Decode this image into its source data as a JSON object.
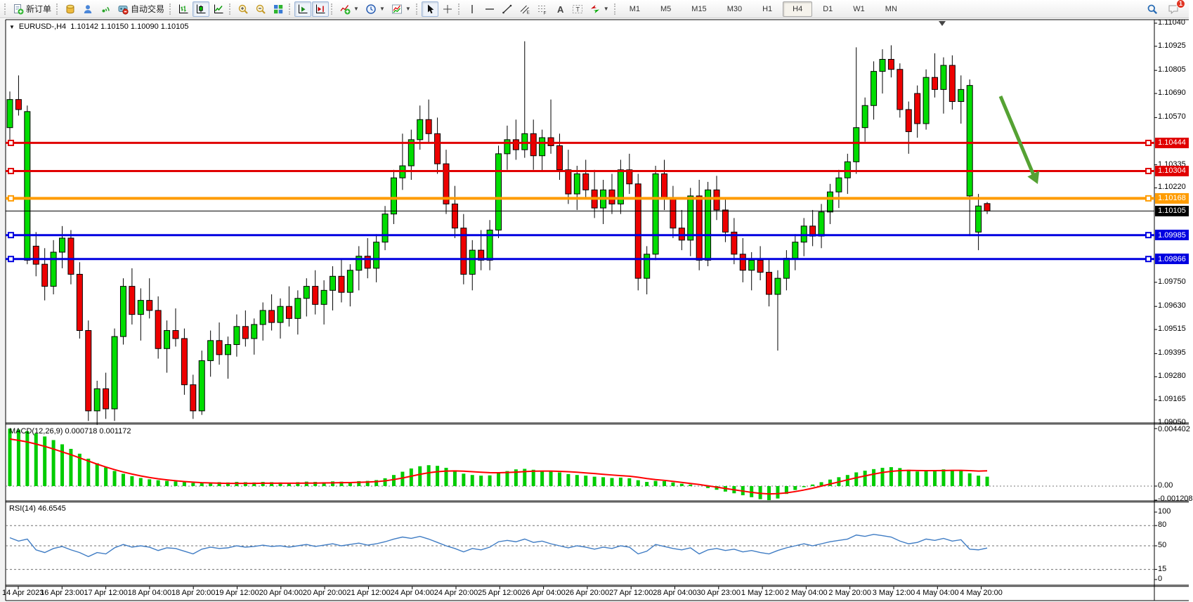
{
  "colors": {
    "bull_candle": "#00dd00",
    "bear_candle": "#ee0000",
    "candle_border": "#000000",
    "resistance_line_red": "#e00000",
    "pivot_line_orange": "#ff9c00",
    "support_line_blue": "#0000e0",
    "current_price_line_black": "#000000",
    "macd_histogram": "#00cc00",
    "macd_signal": "#ff0000",
    "rsi_line": "#3f7cc4",
    "annotation_arrow": "#55a233"
  },
  "toolbar": {
    "groups": [
      [
        {
          "name": "new-order",
          "icon": "new-order-icon",
          "label": "新订单"
        }
      ],
      [
        {
          "name": "chart-profile",
          "icon": "profile-icon"
        },
        {
          "name": "mql-community",
          "icon": "community-icon"
        },
        {
          "name": "signals",
          "icon": "signals-icon"
        },
        {
          "name": "auto-trading",
          "icon": "auto-trading-icon",
          "label": "自动交易"
        }
      ],
      [
        {
          "name": "bars-chart",
          "icon": "bars-icon"
        },
        {
          "name": "candlestick-chart",
          "icon": "candles-icon",
          "active": true
        },
        {
          "name": "line-chart",
          "icon": "line-icon"
        }
      ],
      [
        {
          "name": "zoom-in",
          "icon": "zoom-in-icon"
        },
        {
          "name": "zoom-out",
          "icon": "zoom-out-icon"
        },
        {
          "name": "tile-windows",
          "icon": "tile-icon"
        }
      ],
      [
        {
          "name": "auto-scroll",
          "icon": "auto-scroll-icon",
          "active": true
        },
        {
          "name": "chart-shift",
          "icon": "chart-shift-icon",
          "active": true
        }
      ],
      [
        {
          "name": "indicators",
          "icon": "indicators-icon",
          "dropdown": true
        },
        {
          "name": "periods",
          "icon": "clock-icon",
          "dropdown": true
        },
        {
          "name": "templates",
          "icon": "templates-icon",
          "dropdown": true
        }
      ],
      [
        {
          "name": "cursor",
          "icon": "cursor-icon",
          "active": true
        },
        {
          "name": "crosshair",
          "icon": "crosshair-icon"
        }
      ],
      [
        {
          "name": "vertical-line",
          "icon": "vline-icon"
        },
        {
          "name": "horizontal-line",
          "icon": "hline-icon"
        },
        {
          "name": "trendline",
          "icon": "trendline-icon"
        },
        {
          "name": "equidistant-channel",
          "icon": "channel-icon"
        },
        {
          "name": "fibonacci",
          "icon": "fibo-icon"
        },
        {
          "name": "text",
          "icon": "text-icon"
        },
        {
          "name": "text-label",
          "icon": "label-icon"
        },
        {
          "name": "arrows",
          "icon": "arrows-icon",
          "dropdown": true
        }
      ]
    ],
    "timeframes": {
      "items": [
        "M1",
        "M5",
        "M15",
        "M30",
        "H1",
        "H4",
        "D1",
        "W1",
        "MN"
      ],
      "active": "H4"
    },
    "notification_count": "1"
  },
  "chart": {
    "title": {
      "dropdown_icon": "▼",
      "symbol": "EURUSD-,H4",
      "ohlc": "1.10142 1.10150 1.10090 1.10105"
    },
    "price_axis_ticks": [
      "1.11040",
      "1.10925",
      "1.10805",
      "1.10690",
      "1.10570",
      "1.10335",
      "1.10220",
      "1.09750",
      "1.09630",
      "1.09515",
      "1.09395",
      "1.09280",
      "1.09165",
      "1.09050"
    ],
    "levels": [
      {
        "value": "1.10444",
        "color": "#e00000",
        "thickness": 3
      },
      {
        "value": "1.10304",
        "color": "#e00000",
        "thickness": 3
      },
      {
        "value": "1.10168",
        "color": "#ff9c00",
        "thickness": 4
      },
      {
        "value": "1.10105",
        "color": "#000000",
        "thickness": 1
      },
      {
        "value": "1.09985",
        "color": "#0000e0",
        "thickness": 3
      },
      {
        "value": "1.09866",
        "color": "#0000e0",
        "thickness": 3
      }
    ],
    "time_axis_labels": [
      "14 Apr 2023",
      "16 Apr 23:00",
      "17 Apr 12:00",
      "18 Apr 04:00",
      "18 Apr 20:00",
      "19 Apr 12:00",
      "20 Apr 04:00",
      "20 Apr 20:00",
      "21 Apr 12:00",
      "24 Apr 04:00",
      "24 Apr 20:00",
      "25 Apr 12:00",
      "26 Apr 04:00",
      "26 Apr 20:00",
      "27 Apr 12:00",
      "28 Apr 04:00",
      "30 Apr 23:00",
      "1 May 12:00",
      "2 May 04:00",
      "2 May 20:00",
      "3 May 12:00",
      "4 May 04:00",
      "4 May 20:00"
    ],
    "annotation_arrow": {
      "color": "#55a233",
      "direction": "down-right"
    },
    "candles": [
      [
        1.1052,
        1.107,
        1.1046,
        1.1066
      ],
      [
        1.1066,
        1.1078,
        1.1058,
        1.1061
      ],
      [
        1.0986,
        1.1063,
        1.0984,
        1.106
      ],
      [
        1.0993,
        1.1,
        1.0978,
        1.0984
      ],
      [
        1.0984,
        1.0992,
        1.0966,
        1.0973
      ],
      [
        1.0973,
        1.0996,
        1.0969,
        1.099
      ],
      [
        1.099,
        1.1003,
        1.0982,
        1.0997
      ],
      [
        1.0997,
        1.1001,
        1.0974,
        1.0979
      ],
      [
        1.0979,
        1.0985,
        1.0947,
        1.0951
      ],
      [
        1.0951,
        1.0956,
        1.0906,
        1.0911
      ],
      [
        1.0911,
        1.0926,
        1.0904,
        1.0922
      ],
      [
        1.0922,
        1.093,
        1.0907,
        1.0912
      ],
      [
        1.0912,
        1.0952,
        1.0906,
        1.0948
      ],
      [
        1.0948,
        1.0977,
        1.0944,
        1.0973
      ],
      [
        1.0973,
        1.0982,
        1.0954,
        1.0959
      ],
      [
        1.0959,
        1.0972,
        1.0946,
        1.0966
      ],
      [
        1.0966,
        1.0977,
        1.0957,
        1.0961
      ],
      [
        1.0961,
        1.0968,
        1.0937,
        1.0942
      ],
      [
        1.0942,
        1.0956,
        1.093,
        1.0951
      ],
      [
        1.0951,
        1.0962,
        1.0943,
        1.0947
      ],
      [
        1.0947,
        1.0952,
        1.0919,
        1.0924
      ],
      [
        1.0924,
        1.0929,
        1.0907,
        1.0911
      ],
      [
        1.0911,
        1.0941,
        1.0909,
        1.0936
      ],
      [
        1.0936,
        1.0951,
        1.0928,
        1.0946
      ],
      [
        1.0946,
        1.0955,
        1.0934,
        1.0939
      ],
      [
        1.0939,
        1.0948,
        1.0927,
        1.0944
      ],
      [
        1.0944,
        1.0959,
        1.0938,
        1.0953
      ],
      [
        1.0953,
        1.0961,
        1.0943,
        1.0947
      ],
      [
        1.0947,
        1.0957,
        1.0939,
        1.0954
      ],
      [
        1.0954,
        1.0965,
        1.0946,
        1.0961
      ],
      [
        1.0961,
        1.0969,
        1.0951,
        1.0955
      ],
      [
        1.0955,
        1.0967,
        1.0947,
        1.0963
      ],
      [
        1.0963,
        1.0973,
        1.0953,
        1.0957
      ],
      [
        1.0957,
        1.0971,
        1.0949,
        1.0967
      ],
      [
        1.0967,
        1.0977,
        1.0958,
        1.0973
      ],
      [
        1.0973,
        1.0981,
        1.0959,
        1.0964
      ],
      [
        1.0964,
        1.0976,
        1.0954,
        1.0971
      ],
      [
        1.0971,
        1.0983,
        1.0961,
        1.0978
      ],
      [
        1.0978,
        1.0987,
        1.0965,
        1.097
      ],
      [
        1.097,
        1.0984,
        1.0963,
        1.0981
      ],
      [
        1.0981,
        1.0993,
        1.0971,
        1.0988
      ],
      [
        1.0988,
        1.0997,
        1.0977,
        1.0982
      ],
      [
        1.0982,
        1.0999,
        1.0975,
        1.0995
      ],
      [
        1.0995,
        1.1013,
        1.0991,
        1.1009
      ],
      [
        1.1009,
        1.1031,
        1.1004,
        1.1027
      ],
      [
        1.1027,
        1.1049,
        1.1021,
        1.1033
      ],
      [
        1.1033,
        1.1051,
        1.1026,
        1.1046
      ],
      [
        1.1046,
        1.1063,
        1.1041,
        1.1056
      ],
      [
        1.1056,
        1.1066,
        1.1044,
        1.1049
      ],
      [
        1.1049,
        1.1057,
        1.1029,
        1.1034
      ],
      [
        1.1034,
        1.1041,
        1.1009,
        1.1014
      ],
      [
        1.1014,
        1.1023,
        1.0997,
        1.1002
      ],
      [
        1.1002,
        1.1009,
        1.0974,
        1.0979
      ],
      [
        1.0979,
        1.0996,
        1.0971,
        1.0991
      ],
      [
        1.0991,
        1.1001,
        1.0981,
        1.0986
      ],
      [
        1.0986,
        1.1006,
        1.0981,
        1.1001
      ],
      [
        1.1001,
        1.1043,
        1.0997,
        1.1039
      ],
      [
        1.1039,
        1.1053,
        1.1031,
        1.1046
      ],
      [
        1.1046,
        1.1056,
        1.1036,
        1.1041
      ],
      [
        1.1041,
        1.1095,
        1.1037,
        1.1049
      ],
      [
        1.1049,
        1.1056,
        1.1031,
        1.1038
      ],
      [
        1.1038,
        1.1051,
        1.103,
        1.1047
      ],
      [
        1.1047,
        1.1066,
        1.1039,
        1.1043
      ],
      [
        1.1043,
        1.1049,
        1.1026,
        1.1031
      ],
      [
        1.1031,
        1.1041,
        1.1014,
        1.1019
      ],
      [
        1.1019,
        1.1033,
        1.1011,
        1.1029
      ],
      [
        1.1029,
        1.1036,
        1.1017,
        1.1021
      ],
      [
        1.1021,
        1.1031,
        1.1007,
        1.1012
      ],
      [
        1.1012,
        1.1026,
        1.1004,
        1.1021
      ],
      [
        1.1021,
        1.1029,
        1.1009,
        1.1014
      ],
      [
        1.1014,
        1.1036,
        1.1009,
        1.1031
      ],
      [
        1.1031,
        1.1039,
        1.1019,
        1.1024
      ],
      [
        1.1024,
        1.1029,
        1.0971,
        1.0977
      ],
      [
        1.0977,
        1.0993,
        1.0969,
        1.0989
      ],
      [
        1.0989,
        1.1033,
        1.0986,
        1.1029
      ],
      [
        1.1029,
        1.1036,
        1.1011,
        1.1017
      ],
      [
        1.1017,
        1.1023,
        1.0997,
        1.1002
      ],
      [
        1.1002,
        1.1011,
        1.0991,
        1.0996
      ],
      [
        1.0996,
        1.1022,
        1.0988,
        1.1018
      ],
      [
        1.1018,
        1.1026,
        1.0981,
        1.0986
      ],
      [
        1.0986,
        1.1025,
        1.0983,
        1.1021
      ],
      [
        1.1021,
        1.1028,
        1.1006,
        1.1011
      ],
      [
        1.1011,
        1.1017,
        1.0995,
        1.1
      ],
      [
        1.1,
        1.1007,
        1.0984,
        1.0989
      ],
      [
        1.0989,
        1.0997,
        1.0975,
        1.0981
      ],
      [
        1.0981,
        1.099,
        1.0971,
        1.0986
      ],
      [
        1.0986,
        1.0993,
        1.0976,
        1.098
      ],
      [
        1.098,
        1.0987,
        1.0963,
        1.0969
      ],
      [
        1.0969,
        1.0981,
        1.0941,
        1.0977
      ],
      [
        1.0977,
        1.0991,
        1.0971,
        1.0987
      ],
      [
        1.0987,
        1.0999,
        1.0981,
        1.0995
      ],
      [
        1.0995,
        1.1007,
        1.0988,
        1.1003
      ],
      [
        1.1003,
        1.1011,
        1.0993,
        1.0998
      ],
      [
        1.0998,
        1.1014,
        1.0992,
        1.101
      ],
      [
        1.101,
        1.1024,
        1.1004,
        1.102
      ],
      [
        1.102,
        1.1031,
        1.1012,
        1.1027
      ],
      [
        1.1027,
        1.1039,
        1.1019,
        1.1035
      ],
      [
        1.1035,
        1.1092,
        1.1029,
        1.1052
      ],
      [
        1.1052,
        1.1067,
        1.1045,
        1.1063
      ],
      [
        1.1063,
        1.1085,
        1.1056,
        1.108
      ],
      [
        1.108,
        1.1091,
        1.1069,
        1.1086
      ],
      [
        1.1086,
        1.1093,
        1.1077,
        1.1081
      ],
      [
        1.1081,
        1.1084,
        1.1057,
        1.1061
      ],
      [
        1.1061,
        1.1065,
        1.1039,
        1.105
      ],
      [
        1.1069,
        1.1073,
        1.1047,
        1.1054
      ],
      [
        1.1054,
        1.1081,
        1.1051,
        1.1077
      ],
      [
        1.1077,
        1.1089,
        1.1067,
        1.1071
      ],
      [
        1.1071,
        1.1087,
        1.1059,
        1.1083
      ],
      [
        1.1083,
        1.1088,
        1.1061,
        1.1065
      ],
      [
        1.1065,
        1.1078,
        1.1054,
        1.1071
      ],
      [
        1.1018,
        1.1076,
        1.0998,
        1.1073
      ],
      [
        1.1,
        1.1019,
        1.0991,
        1.1013
      ],
      [
        1.10142,
        1.1015,
        1.1009,
        1.10105
      ]
    ]
  },
  "macd": {
    "label": "MACD(12,26,9) 0.000718 0.001172",
    "axis_labels": [
      "0.004402",
      "0.00",
      "-0.001208"
    ],
    "histogram": [
      0.0044,
      0.00432,
      0.0042,
      0.00402,
      0.0038,
      0.00352,
      0.0032,
      0.00285,
      0.00248,
      0.0021,
      0.00175,
      0.00143,
      0.00116,
      0.00094,
      0.00076,
      0.00062,
      0.00052,
      0.00045,
      0.0004,
      0.00036,
      0.0003,
      0.00024,
      0.00022,
      0.00026,
      0.0003,
      0.00028,
      0.00032,
      0.0003,
      0.00028,
      0.00032,
      0.0003,
      0.00028,
      0.00026,
      0.0003,
      0.00034,
      0.00032,
      0.0003,
      0.00036,
      0.00034,
      0.00032,
      0.00038,
      0.0004,
      0.00046,
      0.0006,
      0.00085,
      0.0011,
      0.00135,
      0.00152,
      0.0016,
      0.00155,
      0.0014,
      0.0012,
      0.00095,
      0.00085,
      0.0008,
      0.00082,
      0.001,
      0.00115,
      0.00128,
      0.00132,
      0.00125,
      0.00118,
      0.00115,
      0.00105,
      0.00092,
      0.00085,
      0.0008,
      0.00072,
      0.00068,
      0.00062,
      0.00065,
      0.0006,
      0.00045,
      0.00032,
      0.0004,
      0.00038,
      0.00028,
      0.00018,
      0.00012,
      0.0,
      -0.00015,
      -0.00028,
      -0.00042,
      -0.00055,
      -0.0007,
      -0.00085,
      -0.001,
      -0.0012,
      -0.00095,
      -0.0006,
      -0.0003,
      -8e-05,
      0.00012,
      0.0003,
      0.0005,
      0.00068,
      0.00085,
      0.00105,
      0.00118,
      0.0013,
      0.0014,
      0.00145,
      0.00138,
      0.00125,
      0.00112,
      0.00115,
      0.00122,
      0.00128,
      0.00124,
      0.00118,
      0.00098,
      0.0008,
      0.00072
    ],
    "signal": [
      0.0036,
      0.0035,
      0.00338,
      0.00322,
      0.00304,
      0.00284,
      0.00262,
      0.0024,
      0.00216,
      0.00192,
      0.00168,
      0.00146,
      0.00126,
      0.00108,
      0.00092,
      0.00078,
      0.00066,
      0.00056,
      0.00048,
      0.00041,
      0.00035,
      0.0003,
      0.00026,
      0.00024,
      0.00022,
      0.00021,
      0.00021,
      0.00021,
      0.00021,
      0.00022,
      0.00022,
      0.00022,
      0.00022,
      0.00022,
      0.00023,
      0.00023,
      0.00024,
      0.00025,
      0.00026,
      0.00027,
      0.00029,
      0.00031,
      0.00034,
      0.0004,
      0.0005,
      0.00062,
      0.00076,
      0.0009,
      0.00102,
      0.0011,
      0.00115,
      0.00116,
      0.00114,
      0.0011,
      0.00106,
      0.00103,
      0.00102,
      0.00104,
      0.00107,
      0.00111,
      0.00114,
      0.00115,
      0.00115,
      0.00113,
      0.0011,
      0.00106,
      0.00101,
      0.00096,
      0.0009,
      0.00085,
      0.0008,
      0.00076,
      0.00068,
      0.00058,
      0.0005,
      0.00044,
      0.00036,
      0.00028,
      0.0002,
      0.00012,
      2e-05,
      -8e-05,
      -0.00018,
      -0.00028,
      -0.00038,
      -0.00048,
      -0.00056,
      -0.0006,
      -0.00058,
      -0.00052,
      -0.00042,
      -0.0003,
      -0.00016,
      0.0,
      0.00016,
      0.00032,
      0.00048,
      0.00064,
      0.00078,
      0.00092,
      0.00104,
      0.00113,
      0.00118,
      0.0012,
      0.00119,
      0.00118,
      0.00118,
      0.00119,
      0.0012,
      0.0012,
      0.00118,
      0.00115,
      0.00117
    ]
  },
  "rsi": {
    "label": "RSI(14) 46.6545",
    "axis_labels": [
      "100",
      "80",
      "50",
      "15",
      "0"
    ],
    "levels": [
      80,
      50,
      15
    ],
    "values": [
      62,
      57,
      60,
      44,
      40,
      46,
      49,
      44,
      40,
      34,
      40,
      38,
      47,
      52,
      48,
      50,
      48,
      43,
      47,
      46,
      42,
      38,
      45,
      48,
      46,
      47,
      50,
      48,
      49,
      51,
      49,
      50,
      48,
      50,
      52,
      49,
      51,
      53,
      50,
      52,
      54,
      51,
      53,
      56,
      60,
      63,
      61,
      64,
      60,
      55,
      50,
      46,
      41,
      46,
      44,
      48,
      56,
      58,
      56,
      60,
      55,
      57,
      53,
      50,
      47,
      50,
      48,
      45,
      48,
      46,
      50,
      48,
      38,
      42,
      52,
      49,
      46,
      44,
      47,
      38,
      44,
      46,
      43,
      45,
      41,
      43,
      40,
      38,
      43,
      47,
      50,
      53,
      50,
      53,
      56,
      58,
      60,
      66,
      64,
      67,
      65,
      63,
      57,
      53,
      55,
      60,
      58,
      61,
      57,
      59,
      45,
      44,
      46.65
    ]
  }
}
